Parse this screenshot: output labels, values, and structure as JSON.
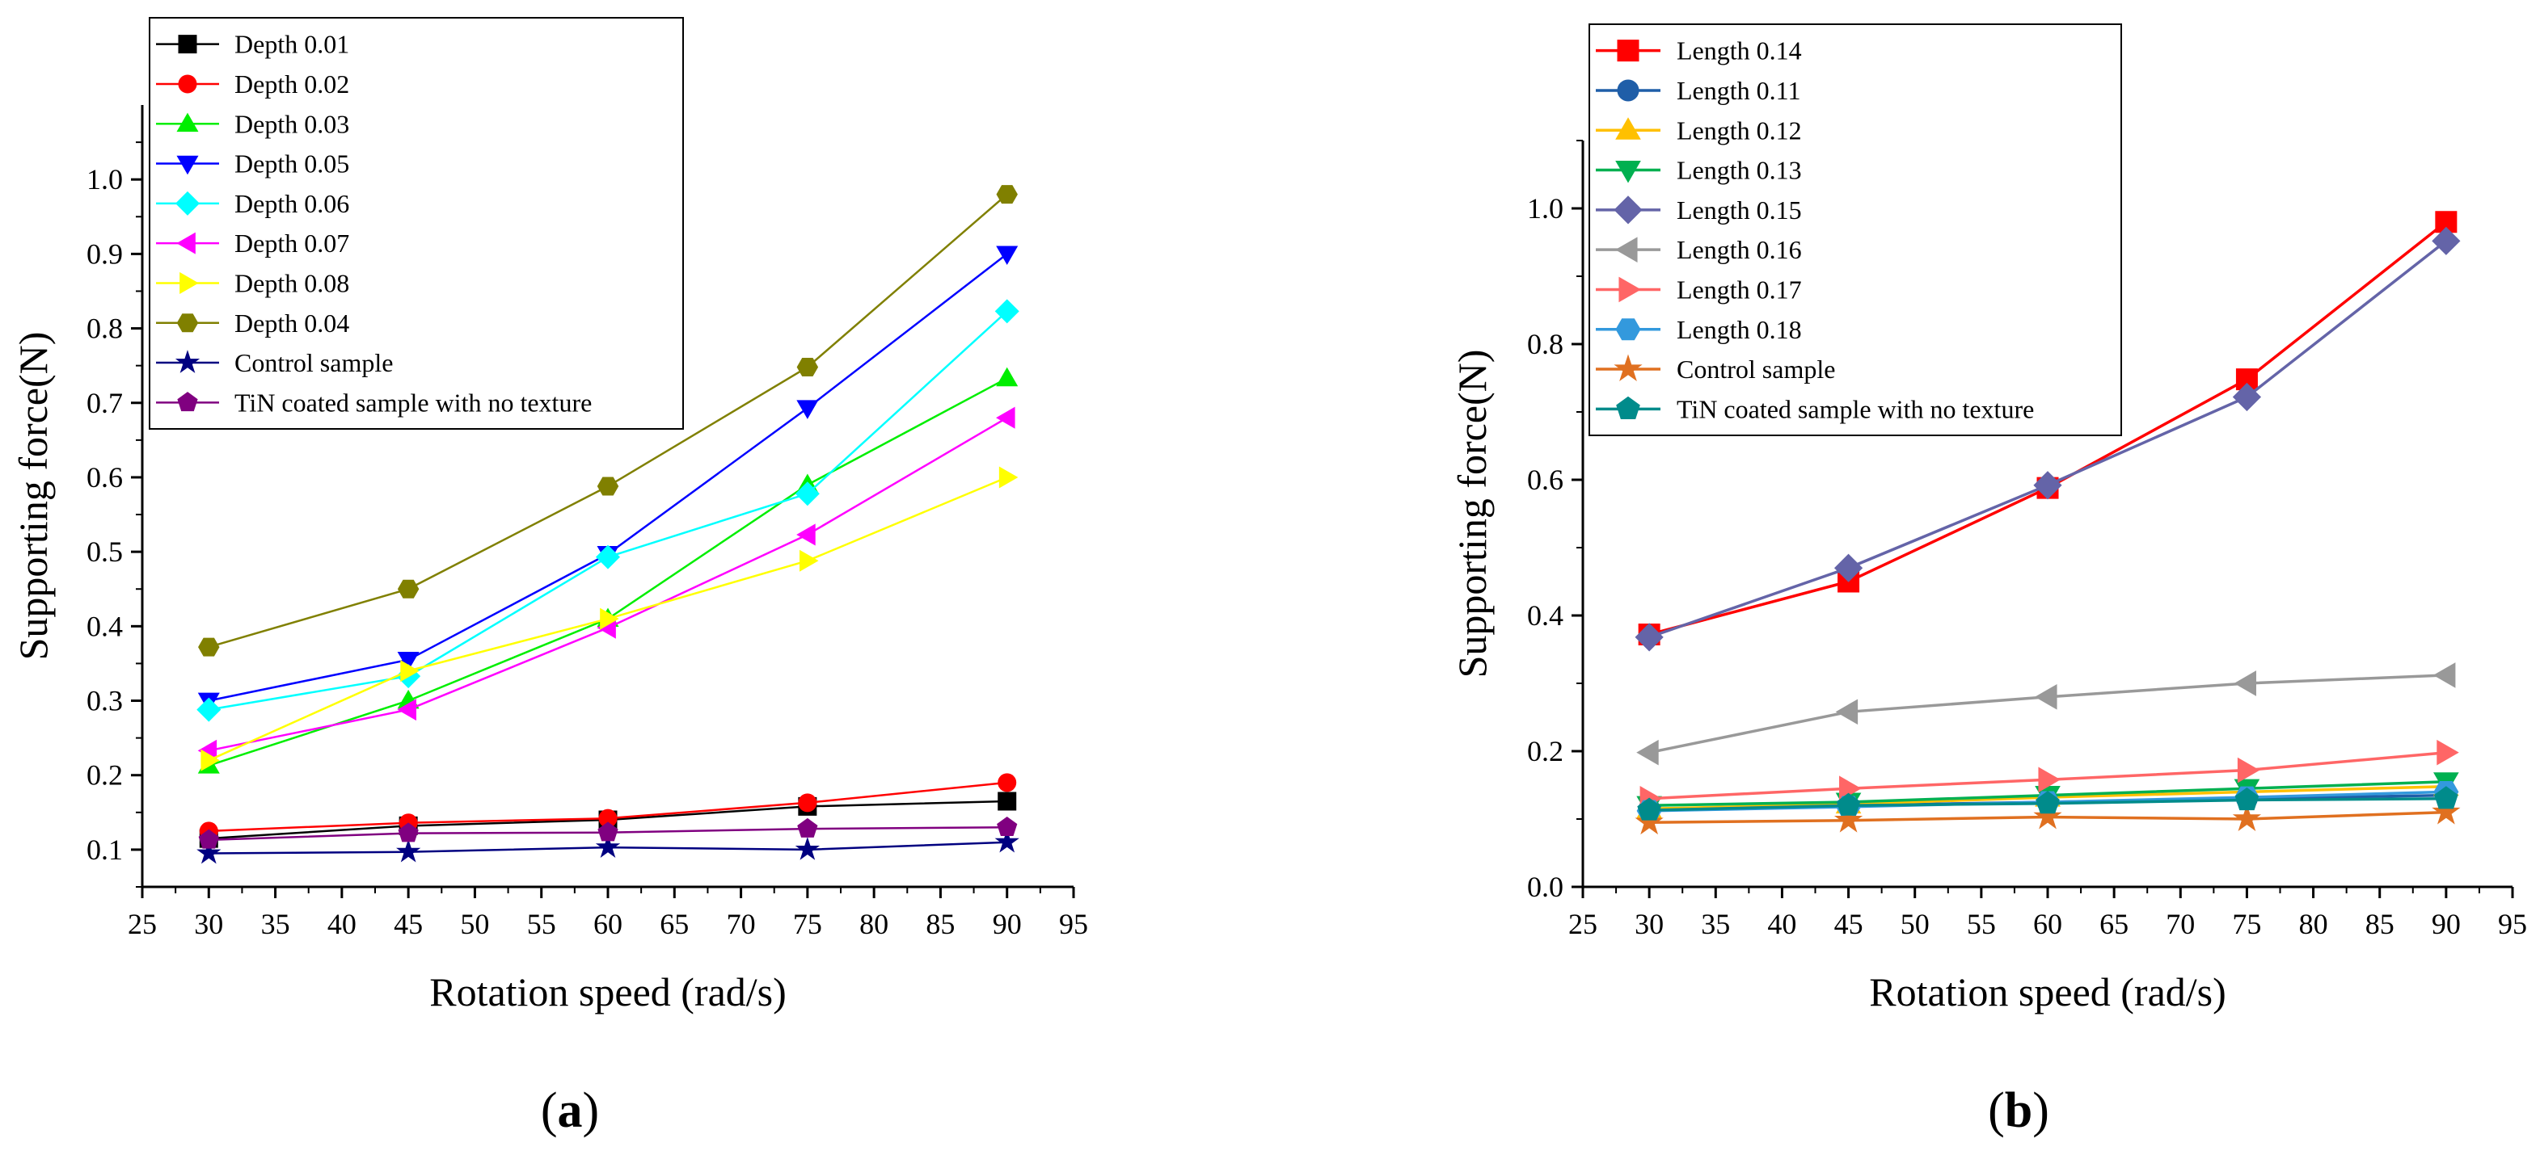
{
  "chart_data": [
    {
      "type": "line",
      "panel_label": "(a)",
      "panel_letter": "a",
      "xlabel": "Rotation speed (rad/s)",
      "ylabel": "Supporting force(N)",
      "xlim": [
        25,
        95
      ],
      "ylim": [
        0.05,
        1.1
      ],
      "xticks": [
        25,
        30,
        35,
        40,
        45,
        50,
        55,
        60,
        65,
        70,
        75,
        80,
        85,
        90,
        95
      ],
      "yticks": [
        0.1,
        0.2,
        0.3,
        0.4,
        0.5,
        0.6,
        0.7,
        0.8,
        0.9,
        1.0
      ],
      "ytick_labels": [
        "0.1",
        "0.2",
        "0.3",
        "0.4",
        "0.5",
        "0.6",
        "0.7",
        "0.8",
        "0.9",
        "1.0"
      ],
      "legend_position": "top-left",
      "grid": false,
      "x": [
        30,
        45,
        60,
        75,
        90
      ],
      "series": [
        {
          "name": "Depth 0.01",
          "color": "#000000",
          "marker": "square",
          "values": [
            0.115,
            0.132,
            0.14,
            0.158,
            0.165
          ]
        },
        {
          "name": "Depth 0.02",
          "color": "#ff0000",
          "marker": "circle",
          "values": [
            0.125,
            0.136,
            0.142,
            0.163,
            0.19
          ]
        },
        {
          "name": "Depth 0.03",
          "color": "#00ee00",
          "marker": "triangle-up",
          "values": [
            0.213,
            0.3,
            0.41,
            0.59,
            0.733
          ]
        },
        {
          "name": "Depth 0.05",
          "color": "#0000ff",
          "marker": "triangle-down",
          "values": [
            0.3,
            0.355,
            0.497,
            0.693,
            0.9
          ]
        },
        {
          "name": "Depth 0.06",
          "color": "#00ffff",
          "marker": "diamond",
          "values": [
            0.288,
            0.333,
            0.493,
            0.578,
            0.823
          ]
        },
        {
          "name": "Depth 0.07",
          "color": "#ff00ff",
          "marker": "triangle-left",
          "values": [
            0.233,
            0.288,
            0.398,
            0.523,
            0.68
          ]
        },
        {
          "name": "Depth 0.08",
          "color": "#ffff00",
          "marker": "triangle-right",
          "values": [
            0.22,
            0.34,
            0.41,
            0.488,
            0.6
          ]
        },
        {
          "name": "Depth 0.04",
          "color": "#808000",
          "marker": "hexagon",
          "values": [
            0.372,
            0.45,
            0.588,
            0.748,
            0.98
          ]
        },
        {
          "name": "Control sample",
          "color": "#000080",
          "marker": "star",
          "values": [
            0.095,
            0.097,
            0.103,
            0.1,
            0.11
          ]
        },
        {
          "name": "TiN coated sample with no texture",
          "color": "#800080",
          "marker": "pentagon",
          "values": [
            0.113,
            0.122,
            0.123,
            0.128,
            0.13
          ]
        }
      ]
    },
    {
      "type": "line",
      "panel_label": "(b)",
      "panel_letter": "b",
      "xlabel": "Rotation speed (rad/s)",
      "ylabel": "Supporting force(N)",
      "xlim": [
        25,
        95
      ],
      "ylim": [
        0.0,
        1.1
      ],
      "xticks": [
        25,
        30,
        35,
        40,
        45,
        50,
        55,
        60,
        65,
        70,
        75,
        80,
        85,
        90,
        95
      ],
      "yticks": [
        0.0,
        0.2,
        0.4,
        0.6,
        0.8,
        1.0
      ],
      "ytick_labels": [
        "0.0",
        "0.2",
        "0.4",
        "0.6",
        "0.8",
        "1.0"
      ],
      "legend_position": "top-left",
      "grid": false,
      "x": [
        30,
        45,
        60,
        75,
        90
      ],
      "series": [
        {
          "name": "Length 0.14",
          "color": "#ff0000",
          "marker": "square",
          "values": [
            0.372,
            0.45,
            0.588,
            0.748,
            0.98
          ]
        },
        {
          "name": "Length 0.11",
          "color": "#1f5ea8",
          "marker": "circle",
          "values": [
            0.115,
            0.12,
            0.125,
            0.13,
            0.135
          ]
        },
        {
          "name": "Length 0.12",
          "color": "#ffc000",
          "marker": "triangle-up",
          "values": [
            0.115,
            0.122,
            0.132,
            0.14,
            0.148
          ]
        },
        {
          "name": "Length 0.13",
          "color": "#00b050",
          "marker": "triangle-down",
          "values": [
            0.12,
            0.125,
            0.135,
            0.145,
            0.155
          ]
        },
        {
          "name": "Length 0.15",
          "color": "#6464a8",
          "marker": "diamond",
          "values": [
            0.368,
            0.47,
            0.592,
            0.722,
            0.952
          ]
        },
        {
          "name": "Length 0.16",
          "color": "#999999",
          "marker": "triangle-left",
          "values": [
            0.198,
            0.258,
            0.28,
            0.3,
            0.312
          ]
        },
        {
          "name": "Length 0.17",
          "color": "#ff6666",
          "marker": "triangle-right",
          "values": [
            0.13,
            0.145,
            0.158,
            0.172,
            0.198
          ]
        },
        {
          "name": "Length 0.18",
          "color": "#3399dd",
          "marker": "hexagon",
          "values": [
            0.112,
            0.118,
            0.125,
            0.132,
            0.14
          ]
        },
        {
          "name": "Control sample",
          "color": "#e07020",
          "marker": "star",
          "values": [
            0.095,
            0.098,
            0.103,
            0.1,
            0.11
          ]
        },
        {
          "name": "TiN coated sample with no texture",
          "color": "#008b8b",
          "marker": "pentagon",
          "values": [
            0.113,
            0.12,
            0.123,
            0.128,
            0.13
          ]
        }
      ]
    }
  ]
}
